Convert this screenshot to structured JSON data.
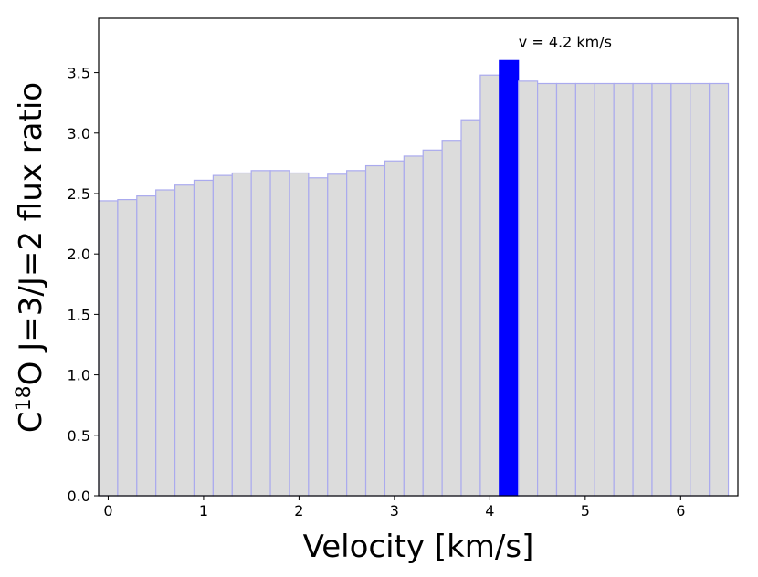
{
  "chart_data": {
    "type": "bar",
    "title": "",
    "xlabel": "Velocity [km/s]",
    "ylabel_parts": {
      "pre": "C",
      "sup": "18",
      "post": "O  J=3/J=2 flux ratio"
    },
    "xlim": [
      -0.1,
      6.6
    ],
    "ylim": [
      0.0,
      3.95
    ],
    "bin_width": 0.2,
    "x_ticks": [
      0,
      1,
      2,
      3,
      4,
      5,
      6
    ],
    "x_tick_labels": [
      "0",
      "1",
      "2",
      "3",
      "4",
      "5",
      "6"
    ],
    "y_ticks": [
      0.0,
      0.5,
      1.0,
      1.5,
      2.0,
      2.5,
      3.0,
      3.5
    ],
    "y_tick_labels": [
      "0.0",
      "0.5",
      "1.0",
      "1.5",
      "2.0",
      "2.5",
      "3.0",
      "3.5"
    ],
    "x": [
      0.0,
      0.2,
      0.4,
      0.6,
      0.8,
      1.0,
      1.2,
      1.4,
      1.6,
      1.8,
      2.0,
      2.2,
      2.4,
      2.6,
      2.8,
      3.0,
      3.2,
      3.4,
      3.6,
      3.8,
      4.0,
      4.2,
      4.4,
      4.6,
      4.8,
      5.0,
      5.2,
      5.4,
      5.6,
      5.8,
      6.0,
      6.2,
      6.4
    ],
    "values": [
      2.44,
      2.45,
      2.48,
      2.53,
      2.57,
      2.61,
      2.65,
      2.67,
      2.69,
      2.69,
      2.67,
      2.63,
      2.66,
      2.69,
      2.73,
      2.77,
      2.81,
      2.86,
      2.94,
      3.11,
      3.48,
      3.6,
      3.43,
      3.41,
      3.41,
      3.41,
      3.41,
      3.41,
      3.41,
      3.41,
      3.41,
      3.41,
      3.41
    ],
    "highlight_index": 21,
    "annotation": "v = 4.2 km/s",
    "colors": {
      "bar_fill": "#dcdcdc",
      "bar_edge": "#aaaaee",
      "highlight": "#0000ff",
      "axis": "#000000"
    }
  }
}
